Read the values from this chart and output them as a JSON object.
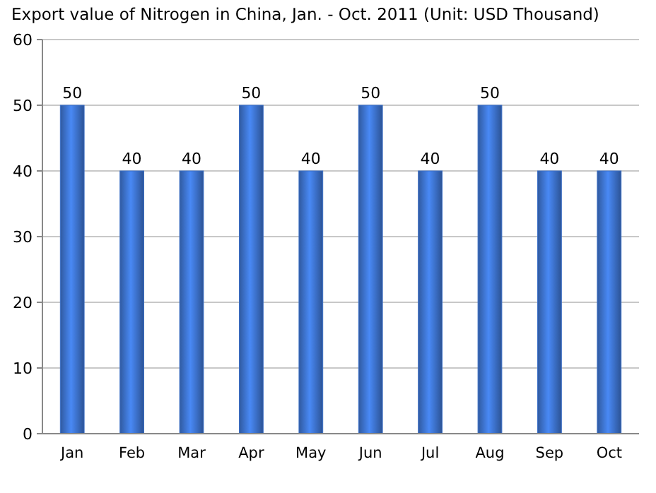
{
  "chart_data": {
    "type": "bar",
    "title": "Export value of Nitrogen in China, Jan. - Oct. 2011 (Unit: USD Thousand)",
    "categories": [
      "Jan",
      "Feb",
      "Mar",
      "Apr",
      "May",
      "Jun",
      "Jul",
      "Aug",
      "Sep",
      "Oct"
    ],
    "values": [
      50,
      40,
      40,
      50,
      40,
      50,
      40,
      50,
      40,
      40
    ],
    "color": "#3b6fc6",
    "ylim": [
      0,
      60
    ],
    "yticks": [
      0,
      10,
      20,
      30,
      40,
      50,
      60
    ],
    "grid": "y",
    "data_labels": true
  }
}
